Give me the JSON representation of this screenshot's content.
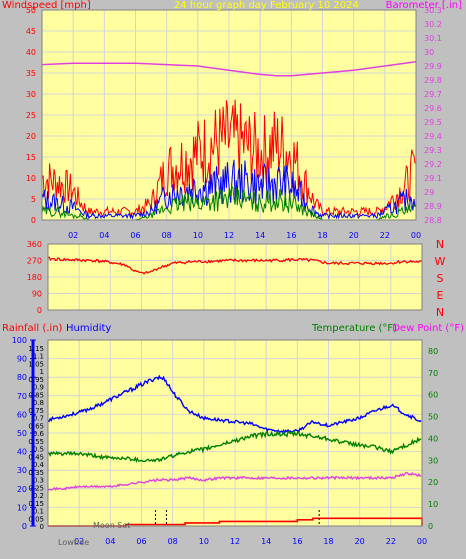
{
  "colors": {
    "background": "#c0c0c0",
    "plot": "#ffffa0",
    "grid": "#d4d4d4",
    "wind_gust": "#ff0000",
    "wind_avg": "#0000ff",
    "wind_low": "#008000",
    "barometer": "#e040e0",
    "direction": "#ff0000",
    "rain": "#ff0000",
    "humidity": "#0000ff",
    "temperature": "#008000",
    "dewpoint": "#e040e0",
    "title": "#ffff00",
    "moon": "#606060"
  },
  "chart_data": [
    {
      "type": "line",
      "name": "wind_baro",
      "title": "24 hour graph day   February 10 2024",
      "ylabel_left": "Windspeed [mph]",
      "ylabel_right": "Barometer [.in]",
      "xticks": [
        "02",
        "04",
        "06",
        "08",
        "10",
        "12",
        "14",
        "16",
        "18",
        "20",
        "22",
        "00"
      ],
      "yticks_left": [
        "0",
        "5",
        "10",
        "15",
        "20",
        "25",
        "30",
        "35",
        "40",
        "45",
        "50"
      ],
      "yticks_right": [
        "28.8",
        "28.9",
        "29",
        "29.1",
        "29.2",
        "29.3",
        "29.4",
        "29.5",
        "29.6",
        "29.7",
        "29.8",
        "29.9",
        "30",
        "30.1",
        "30.2",
        "30.3"
      ],
      "ylim_left": [
        0,
        50
      ],
      "ylim_right": [
        28.8,
        30.3
      ],
      "xlim_hours": [
        0,
        24
      ],
      "grid": true,
      "series": [
        {
          "key": "gust",
          "color": "wind_gust",
          "x": [
            0,
            1,
            2,
            2.5,
            3,
            4,
            5,
            6,
            7,
            7.5,
            8,
            9,
            10,
            11,
            12,
            13,
            14,
            15,
            16,
            16.5,
            17,
            17.5,
            18,
            19,
            20,
            21,
            21.5,
            22,
            22.5,
            23,
            23.5,
            24
          ],
          "y": [
            10,
            9,
            7,
            4,
            2,
            2,
            2,
            2,
            4,
            8,
            12,
            14,
            16,
            18,
            19,
            18,
            16,
            18,
            16,
            12,
            8,
            4,
            2,
            2,
            2,
            2,
            2,
            3,
            5,
            7,
            9,
            13
          ]
        },
        {
          "key": "avg",
          "color": "wind_avg",
          "x": [
            0,
            1,
            2,
            2.5,
            3,
            4,
            5,
            6,
            7,
            7.5,
            8,
            9,
            10,
            11,
            12,
            13,
            14,
            15,
            16,
            16.5,
            17,
            17.5,
            18,
            19,
            20,
            21,
            21.5,
            22,
            22.5,
            23,
            23.5,
            24
          ],
          "y": [
            5,
            4,
            3,
            2,
            1,
            1,
            1,
            1,
            2,
            4,
            6,
            7,
            8,
            8,
            9,
            9,
            8,
            9,
            8,
            6,
            4,
            2,
            1,
            1,
            1,
            1,
            1,
            2,
            3,
            4,
            5,
            6
          ]
        },
        {
          "key": "low",
          "color": "wind_low",
          "x": [
            0,
            1,
            2,
            2.5,
            3,
            4,
            5,
            6,
            7,
            7.5,
            8,
            9,
            10,
            11,
            12,
            13,
            14,
            15,
            16,
            16.5,
            17,
            17.5,
            18,
            19,
            20,
            21,
            21.5,
            22,
            22.5,
            23,
            23.5,
            24
          ],
          "y": [
            2,
            2,
            1,
            1,
            0,
            0,
            0,
            0,
            1,
            2,
            3,
            4,
            4,
            5,
            5,
            5,
            4,
            5,
            4,
            3,
            2,
            1,
            0,
            0,
            0,
            0,
            0,
            1,
            1,
            2,
            2,
            3
          ]
        },
        {
          "key": "baro",
          "color": "barometer",
          "axis": "right",
          "x": [
            0,
            2,
            4,
            6,
            8,
            10,
            12,
            14,
            15,
            16,
            17,
            18,
            20,
            22,
            24
          ],
          "y": [
            29.91,
            29.92,
            29.92,
            29.92,
            29.91,
            29.9,
            29.87,
            29.84,
            29.83,
            29.83,
            29.84,
            29.85,
            29.87,
            29.9,
            29.93
          ]
        }
      ]
    },
    {
      "type": "line",
      "name": "direction",
      "yticks": [
        "0",
        "90",
        "180",
        "270",
        "360"
      ],
      "ylim": [
        0,
        360
      ],
      "xlim_hours": [
        0,
        24
      ],
      "compass_labels": [
        "N",
        "W",
        "S",
        "E",
        "N"
      ],
      "series": [
        {
          "key": "dir",
          "color": "direction",
          "x": [
            0,
            1,
            2,
            3,
            4,
            5,
            5.5,
            6,
            6.5,
            7,
            8,
            9,
            10,
            11,
            12,
            13,
            14,
            15,
            16,
            17,
            18,
            19,
            20,
            21,
            22,
            22.5,
            23,
            24
          ],
          "y": [
            280,
            275,
            272,
            270,
            260,
            245,
            215,
            200,
            205,
            225,
            255,
            262,
            265,
            268,
            270,
            270,
            270,
            272,
            275,
            270,
            255,
            255,
            255,
            255,
            255,
            262,
            265,
            262
          ]
        }
      ]
    },
    {
      "type": "line",
      "name": "temp_hum_rain",
      "ylabel_rain": "Rainfall (.in)",
      "ylabel_humidity": "Humidity",
      "ylabel_temperature": "Temperature (°F)",
      "ylabel_dewpoint": "Dew Point (°F)",
      "xticks": [
        "02",
        "04",
        "06",
        "08",
        "10",
        "12",
        "14",
        "16",
        "18",
        "20",
        "22",
        "00"
      ],
      "yticks_humidity": [
        "0",
        "10",
        "20",
        "30",
        "40",
        "50",
        "60",
        "70",
        "80",
        "90",
        "100"
      ],
      "yticks_rain": [
        "0",
        "0.05",
        "0.1",
        "0.15",
        "0.2",
        "0.25",
        "0.3",
        "0.35",
        "0.4",
        "0.45",
        "0.5",
        "0.55",
        "0.6",
        "0.65",
        "0.7",
        "0.75",
        "0.8",
        "0.85",
        "0.9",
        "0.95",
        "1",
        "1.05",
        "1.1",
        "1.15"
      ],
      "yticks_temp": [
        "0",
        "10",
        "20",
        "30",
        "40",
        "50",
        "60",
        "70",
        "80"
      ],
      "ylim_humidity": [
        0,
        100
      ],
      "ylim_rain": [
        0,
        1.2
      ],
      "ylim_temp": [
        0,
        85
      ],
      "xlim_hours": [
        0,
        24
      ],
      "moon_labels": [
        "Lowtide",
        "Moon Set"
      ],
      "series": [
        {
          "key": "humidity",
          "color": "humidity",
          "axis": "humidity",
          "x": [
            0,
            1,
            2,
            3,
            4,
            5,
            6,
            7,
            7.5,
            8,
            9,
            10,
            11,
            12,
            13,
            14,
            15,
            16,
            17,
            18,
            19,
            20,
            21,
            22,
            23,
            24
          ],
          "y": [
            57,
            59,
            61,
            64,
            68,
            72,
            76,
            80,
            79,
            72,
            62,
            58,
            57,
            56,
            55,
            52,
            51,
            51,
            56,
            54,
            56,
            58,
            62,
            65,
            60,
            56
          ]
        },
        {
          "key": "temperature",
          "color": "temperature",
          "axis": "temp",
          "x": [
            0,
            1,
            2,
            3,
            4,
            5,
            6,
            7,
            8,
            9,
            10,
            11,
            12,
            13,
            14,
            15,
            16,
            17,
            18,
            19,
            20,
            21,
            22,
            23,
            24
          ],
          "y": [
            33,
            33,
            33,
            32,
            31,
            31,
            30,
            30,
            32,
            34,
            35,
            37,
            39,
            41,
            42,
            42,
            42,
            41,
            40,
            38,
            37,
            36,
            34,
            37,
            40
          ]
        },
        {
          "key": "dewpoint",
          "color": "dewpoint",
          "axis": "temp",
          "x": [
            0,
            1,
            2,
            3,
            4,
            5,
            6,
            7,
            8,
            9,
            10,
            11,
            12,
            13,
            14,
            15,
            16,
            17,
            18,
            19,
            20,
            21,
            22,
            23,
            24
          ],
          "y": [
            17,
            17,
            18,
            18,
            18,
            19,
            20,
            21,
            21,
            22,
            21,
            22,
            22,
            22,
            22,
            22,
            22,
            22,
            22,
            22,
            22,
            22,
            22,
            24,
            23
          ]
        },
        {
          "key": "rain",
          "color": "rain",
          "axis": "rain",
          "x": [
            0,
            4.5,
            5,
            8.6,
            8.8,
            9,
            11,
            13,
            16,
            17,
            18,
            20,
            22,
            23.8,
            24
          ],
          "y": [
            0,
            0,
            0.01,
            0.01,
            0.02,
            0.02,
            0.03,
            0.03,
            0.04,
            0.05,
            0.05,
            0.05,
            0.05,
            0.05,
            0
          ]
        }
      ],
      "marker_hours": [
        6.9,
        7.6,
        17.4
      ]
    }
  ]
}
